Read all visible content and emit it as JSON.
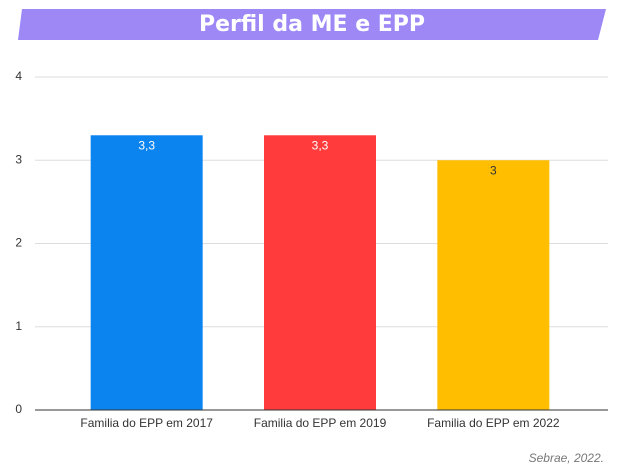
{
  "chart_data": {
    "type": "bar",
    "title": "Perfil da ME e EPP",
    "categories": [
      "Familia do EPP em 2017",
      "Familia do EPP em 2019",
      "Familia do EPP em 2022"
    ],
    "values": [
      3.3,
      3.3,
      3
    ],
    "value_labels": [
      "3,3",
      "3,3",
      "3"
    ],
    "colors": [
      "#0b84f0",
      "#ff3b3b",
      "#ffbf00"
    ],
    "ylim": [
      0,
      4
    ],
    "yticks": [
      0,
      1,
      2,
      3,
      4
    ],
    "grid": true,
    "source": "Sebrae, 2022."
  }
}
